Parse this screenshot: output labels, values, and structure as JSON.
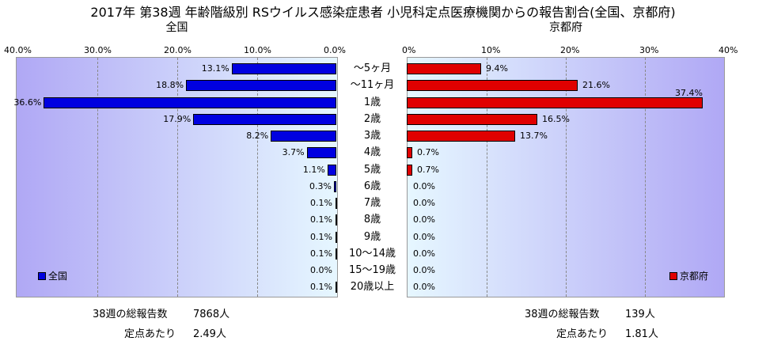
{
  "title": "2017年 第38週 年齢階級別 RSウイルス感染症患者 小児科定点医療機関からの報告割合(全国、京都府)",
  "chart_data": {
    "type": "bar",
    "categories": [
      "～5ヶ月",
      "～11ヶ月",
      "1歳",
      "2歳",
      "3歳",
      "4歳",
      "5歳",
      "6歳",
      "7歳",
      "8歳",
      "9歳",
      "10～14歳",
      "15～19歳",
      "20歳以上"
    ],
    "panels": [
      {
        "name": "全国",
        "subtitle": "全国",
        "legend": "全国",
        "color": "#0000e0",
        "values": [
          13.1,
          18.8,
          36.6,
          17.9,
          8.2,
          3.7,
          1.1,
          0.3,
          0.1,
          0.1,
          0.1,
          0.1,
          0.0,
          0.1
        ],
        "labels": [
          "13.1%",
          "18.8%",
          "36.6%",
          "17.9%",
          "8.2%",
          "3.7%",
          "1.1%",
          "0.3%",
          "0.1%",
          "0.1%",
          "0.1%",
          "0.1%",
          "0.0%",
          "0.1%"
        ],
        "xlim": [
          0,
          40
        ],
        "ticks": [
          "40.0%",
          "30.0%",
          "20.0%",
          "10.0%",
          "0.0%"
        ]
      },
      {
        "name": "京都府",
        "subtitle": "京都府",
        "legend": "京都府",
        "color": "#e00000",
        "values": [
          9.4,
          21.6,
          37.4,
          16.5,
          13.7,
          0.7,
          0.7,
          0.0,
          0.0,
          0.0,
          0.0,
          0.0,
          0.0,
          0.0
        ],
        "labels": [
          "9.4%",
          "21.6%",
          "37.4%",
          "16.5%",
          "13.7%",
          "0.7%",
          "0.7%",
          "0.0%",
          "0.0%",
          "0.0%",
          "0.0%",
          "0.0%",
          "0.0%",
          "0.0%"
        ],
        "xlim": [
          0,
          40
        ],
        "ticks": [
          "0%",
          "10%",
          "20%",
          "30%",
          "40%"
        ]
      }
    ]
  },
  "stats": {
    "national_total_label": "38週の総報告数",
    "national_total_value": "7868人",
    "national_per_label": "定点あたり",
    "national_per_value": "2.49人",
    "kyoto_total_label": "38週の総報告数",
    "kyoto_total_value": "139人",
    "kyoto_per_label": "定点あたり",
    "kyoto_per_value": "1.81人"
  }
}
